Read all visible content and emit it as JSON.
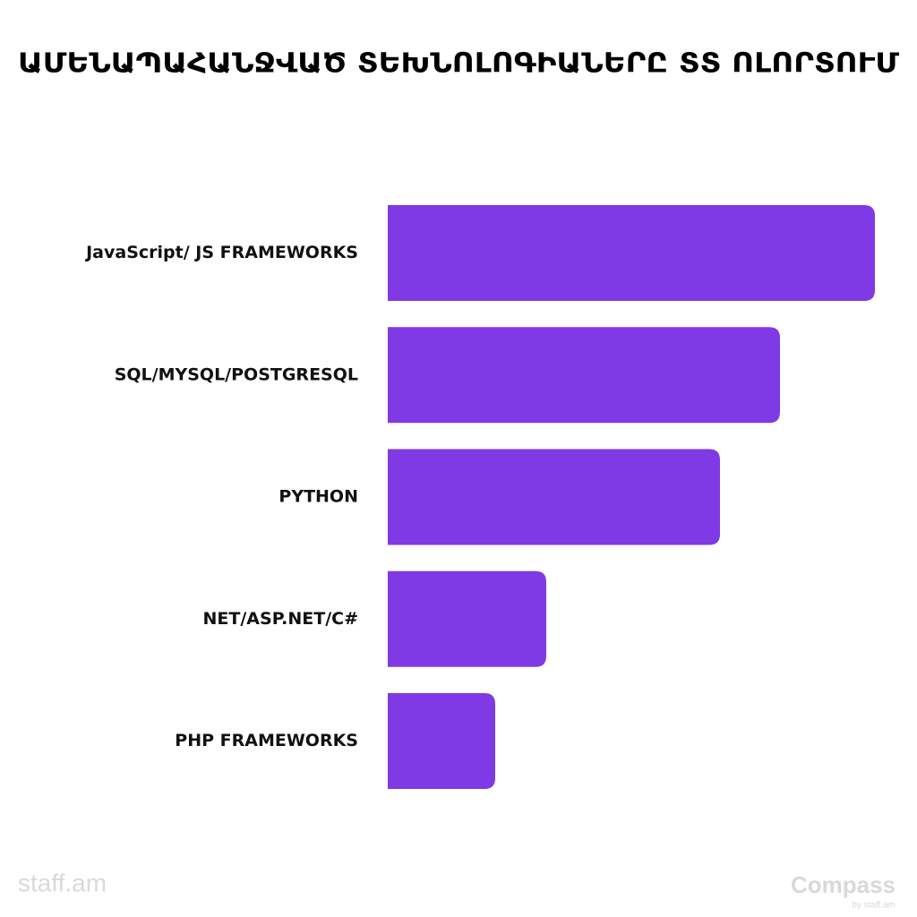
{
  "chart_data": {
    "type": "barh",
    "title": "ԱՄԵՆԱՊԱՀԱՆՋՎԱԾ ՏԵԽՆՈԼՈԳԻԱՆԵՐԸ ՏՏ ՈԼՈՐՏՈՒՄ",
    "categories": [
      "JavaScript/ JS FRAMEWORKS",
      "SQL/MYSQL/POSTGRESQL",
      "PYTHON",
      "NET/ASP.NET/C#",
      "PHP FRAMEWORKS"
    ],
    "values": [
      544,
      438,
      371,
      177,
      120
    ],
    "color": "#7f3ae5"
  },
  "footer": {
    "left": "staff.am",
    "right": "Compass",
    "right_sub": "by staff.am"
  }
}
